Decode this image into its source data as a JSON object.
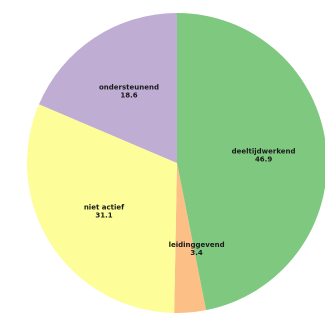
{
  "chart_data": {
    "type": "pie",
    "slices": [
      {
        "label": "deeltijdwerkend",
        "value": 46.9,
        "value_label": "46.9",
        "color": "#7ec97f"
      },
      {
        "label": "leidinggevend",
        "value": 3.4,
        "value_label": "3.4",
        "color": "#fcbf86"
      },
      {
        "label": "niet actief",
        "value": 31.1,
        "value_label": "31.1",
        "color": "#fdfd9a"
      },
      {
        "label": "ondersteunend",
        "value": 18.6,
        "value_label": "18.6",
        "color": "#bfadd4"
      }
    ],
    "start_angle_deg": 0,
    "direction": "clockwise"
  }
}
